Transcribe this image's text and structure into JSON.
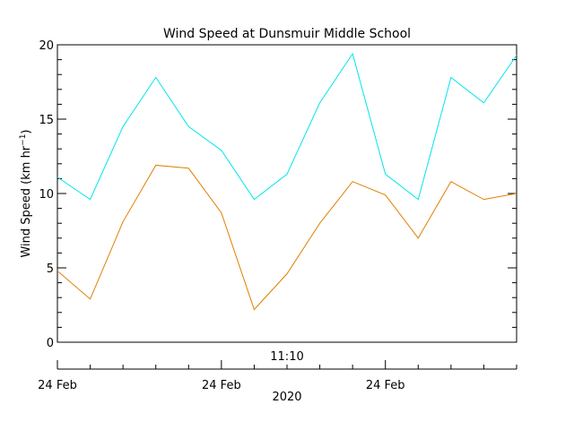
{
  "chart_data": {
    "type": "line",
    "title": "Wind Speed at Dunsmuir Middle School",
    "ylabel": "Wind Speed (km hr",
    "ylabel_sup": "−1",
    "ylabel_close": ")",
    "xlabel": "2020",
    "time_label": "11:10",
    "ylim": [
      0,
      20
    ],
    "yticks": [
      "0",
      "5",
      "10",
      "15",
      "20"
    ],
    "x": [
      0,
      1,
      2,
      3,
      4,
      5,
      6,
      7,
      8,
      9,
      10,
      11,
      12,
      13,
      14
    ],
    "xlim": [
      0,
      14
    ],
    "date_ticks": [
      {
        "label": "24 Feb",
        "x": 0
      },
      {
        "label": "24 Feb",
        "x": 5
      },
      {
        "label": "24 Feb",
        "x": 10
      }
    ],
    "series": [
      {
        "color": "#00e5ee",
        "values": [
          11.1,
          9.6,
          14.5,
          17.8,
          14.5,
          12.9,
          9.6,
          11.3,
          16.1,
          19.4,
          11.3,
          9.6,
          17.8,
          16.1,
          19.3
        ]
      },
      {
        "color": "#e08000",
        "values": [
          4.8,
          2.9,
          8.1,
          11.9,
          11.7,
          8.7,
          2.2,
          4.6,
          8.0,
          10.8,
          9.9,
          7.0,
          10.8,
          9.6,
          10.0
        ]
      }
    ]
  }
}
